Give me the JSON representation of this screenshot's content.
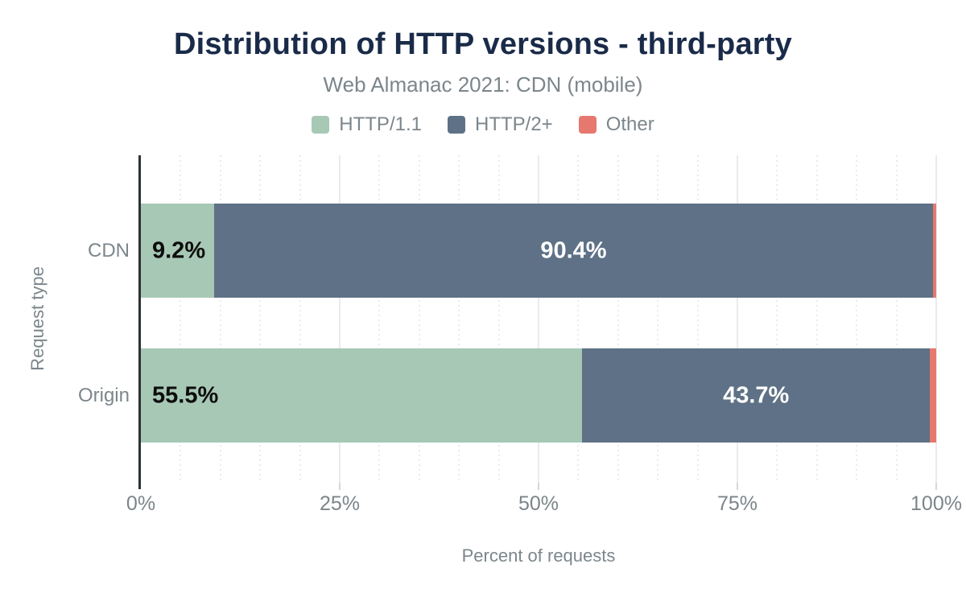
{
  "figure": {
    "title": "Distribution of HTTP versions - third-party",
    "subtitle": "Web Almanac 2021: CDN (mobile)"
  },
  "chart_data": {
    "type": "bar",
    "orientation": "horizontal",
    "stacked": true,
    "title": "Distribution of HTTP versions - third-party",
    "subtitle": "Web Almanac 2021: CDN (mobile)",
    "categories": [
      "CDN",
      "Origin"
    ],
    "series": [
      {
        "name": "HTTP/1.1",
        "color": "#a7c8b5",
        "values": [
          9.2,
          55.5
        ]
      },
      {
        "name": "HTTP/2+",
        "color": "#5e7186",
        "values": [
          90.4,
          43.7
        ]
      },
      {
        "name": "Other",
        "color": "#e7786f",
        "values": [
          0.4,
          0.8
        ]
      }
    ],
    "value_labels": [
      [
        "9.2%",
        "90.4%",
        ""
      ],
      [
        "55.5%",
        "43.7%",
        ""
      ]
    ],
    "xlabel": "Percent of requests",
    "ylabel": "Request type",
    "x_ticks": [
      "0%",
      "25%",
      "50%",
      "75%",
      "100%"
    ],
    "x_tick_values": [
      0,
      25,
      50,
      75,
      100
    ],
    "xlim": [
      0,
      100
    ],
    "minor_grid_step": 5,
    "grid": true,
    "legend_position": "top"
  },
  "colors": {
    "title": "#1a2b49",
    "muted_text": "#7c868b",
    "axis_line": "#2d3238",
    "major_grid": "#e9ebec",
    "minor_grid": "#e9eceb",
    "label_on_light": "#0d0d0d",
    "label_on_dark": "#ffffff"
  }
}
